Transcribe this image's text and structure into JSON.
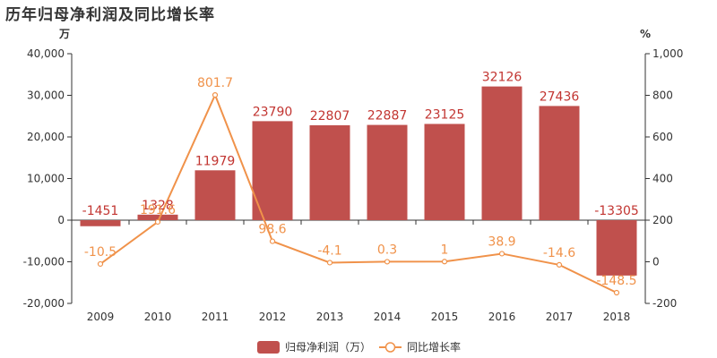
{
  "chart_data": {
    "type": "bar",
    "title": "历年归母净利润及同比增长率",
    "categories": [
      "2009",
      "2010",
      "2011",
      "2012",
      "2013",
      "2014",
      "2015",
      "2016",
      "2017",
      "2018"
    ],
    "series": [
      {
        "name": "归母净利润（万）",
        "type": "bar",
        "axis": "left",
        "color": "#c0504d",
        "values": [
          -1451,
          1328,
          11979,
          23790,
          22807,
          22887,
          23125,
          32126,
          27436,
          -13305
        ],
        "labels": [
          "-1451",
          "1328",
          "11979",
          "23790",
          "22807",
          "22887",
          "23125",
          "32126",
          "27436",
          "-13305"
        ]
      },
      {
        "name": "同比增长率",
        "type": "line",
        "axis": "right",
        "color": "#f0924a",
        "values": [
          -10.5,
          191.6,
          801.7,
          98.6,
          -4.1,
          0.3,
          1,
          38.9,
          -14.6,
          -148.5
        ],
        "labels": [
          "-10.5",
          "191.6",
          "801.7",
          "98.6",
          "-4.1",
          "0.3",
          "1",
          "38.9",
          "-14.6",
          "-148.5"
        ]
      }
    ],
    "y_left": {
      "unit": "万",
      "ylim": [
        -20000,
        40000
      ],
      "ticks": [
        40000,
        30000,
        20000,
        10000,
        0,
        -10000,
        -20000
      ],
      "tick_labels": [
        "40,000",
        "30,000",
        "20,000",
        "10,000",
        "0",
        "-10,000",
        "-20,000"
      ]
    },
    "y_right": {
      "unit": "%",
      "ylim": [
        -200,
        1000
      ],
      "ticks": [
        1000,
        800,
        600,
        400,
        200,
        0,
        -200
      ],
      "tick_labels": [
        "1,000",
        "800",
        "600",
        "400",
        "200",
        "0",
        "-200"
      ]
    },
    "legend_position": "bottom-center",
    "grid": false
  }
}
